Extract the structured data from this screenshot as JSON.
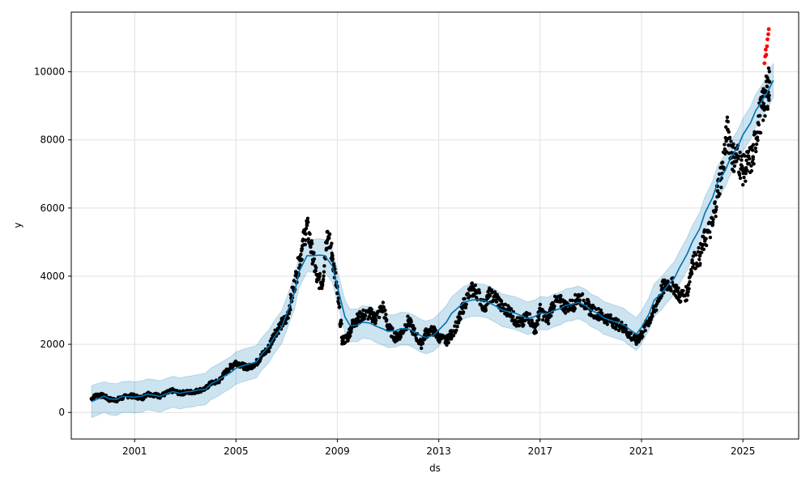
{
  "chart_data": {
    "type": "scatter",
    "title": "",
    "xlabel": "ds",
    "ylabel": "y",
    "xlim": [
      1998.5,
      2027.2
    ],
    "ylim": [
      -780,
      11750
    ],
    "x_ticks": [
      {
        "value": 2001.0,
        "label": "2001"
      },
      {
        "value": 2005.0,
        "label": "2005"
      },
      {
        "value": 2009.0,
        "label": "2009"
      },
      {
        "value": 2013.0,
        "label": "2013"
      },
      {
        "value": 2017.0,
        "label": "2017"
      },
      {
        "value": 2021.0,
        "label": "2021"
      },
      {
        "value": 2025.0,
        "label": "2025"
      }
    ],
    "y_ticks": [
      {
        "value": 0,
        "label": "0"
      },
      {
        "value": 2000,
        "label": "2000"
      },
      {
        "value": 4000,
        "label": "4000"
      },
      {
        "value": 6000,
        "label": "6000"
      },
      {
        "value": 8000,
        "label": "8000"
      },
      {
        "value": 10000,
        "label": "10000"
      }
    ],
    "grid": true,
    "legend": "none",
    "colors": {
      "observed": "#000000",
      "forecast_line": "#0072B2",
      "uncertainty_band": "#0072B2",
      "highlight_points": "#ff0000",
      "grid": "#e0e0e0"
    },
    "series": [
      {
        "role": "forecast",
        "x": [
          1999.3,
          1999.5,
          1999.8,
          2000.0,
          2000.3,
          2000.5,
          2000.8,
          2001.0,
          2001.3,
          2001.5,
          2001.8,
          2002.0,
          2002.3,
          2002.5,
          2002.8,
          2003.0,
          2003.3,
          2003.5,
          2003.8,
          2004.0,
          2004.3,
          2004.5,
          2004.8,
          2005.0,
          2005.3,
          2005.5,
          2005.8,
          2006.0,
          2006.3,
          2006.5,
          2006.8,
          2007.0,
          2007.3,
          2007.5,
          2007.8,
          2008.0,
          2008.3,
          2008.5,
          2008.8,
          2009.0,
          2009.3,
          2009.5,
          2009.8,
          2010.0,
          2010.3,
          2010.5,
          2010.8,
          2011.0,
          2011.3,
          2011.5,
          2011.8,
          2012.0,
          2012.3,
          2012.5,
          2012.8,
          2013.0,
          2013.3,
          2013.5,
          2013.8,
          2014.0,
          2014.3,
          2014.5,
          2014.8,
          2015.0,
          2015.3,
          2015.5,
          2015.8,
          2016.0,
          2016.3,
          2016.5,
          2016.8,
          2017.0,
          2017.3,
          2017.5,
          2017.8,
          2018.0,
          2018.3,
          2018.5,
          2018.8,
          2019.0,
          2019.3,
          2019.5,
          2019.8,
          2020.0,
          2020.3,
          2020.5,
          2020.8,
          2021.0,
          2021.3,
          2021.5,
          2021.8,
          2022.0,
          2022.3,
          2022.5,
          2022.8,
          2023.0,
          2023.3,
          2023.5,
          2023.8,
          2024.0,
          2024.3,
          2024.5,
          2024.8,
          2025.0,
          2025.3,
          2025.5,
          2025.8,
          2026.0,
          2026.2
        ],
        "yhat": [
          320,
          380,
          480,
          400,
          380,
          470,
          460,
          450,
          480,
          540,
          500,
          470,
          560,
          610,
          560,
          600,
          620,
          660,
          680,
          830,
          950,
          1050,
          1180,
          1300,
          1380,
          1420,
          1480,
          1700,
          1950,
          2200,
          2500,
          2900,
          3500,
          4150,
          4600,
          4600,
          4620,
          4600,
          4300,
          3700,
          2800,
          2550,
          2560,
          2650,
          2620,
          2540,
          2450,
          2380,
          2400,
          2460,
          2450,
          2380,
          2250,
          2200,
          2270,
          2420,
          2650,
          2900,
          3100,
          3230,
          3300,
          3310,
          3280,
          3220,
          3100,
          3000,
          2950,
          2920,
          2830,
          2760,
          2820,
          2920,
          2900,
          2980,
          3050,
          3140,
          3180,
          3230,
          3130,
          3000,
          2900,
          2780,
          2700,
          2650,
          2580,
          2450,
          2300,
          2500,
          2900,
          3300,
          3500,
          3700,
          3950,
          4250,
          4650,
          5000,
          5400,
          5850,
          6300,
          6750,
          7100,
          7450,
          7800,
          8150,
          8500,
          8850,
          9200,
          9450,
          9750
        ],
        "upper": [
          780,
          840,
          900,
          860,
          840,
          900,
          920,
          900,
          930,
          990,
          960,
          930,
          1010,
          1060,
          1010,
          1050,
          1080,
          1110,
          1150,
          1300,
          1420,
          1510,
          1640,
          1780,
          1860,
          1900,
          1960,
          2180,
          2430,
          2680,
          2980,
          3380,
          3980,
          4630,
          5080,
          5080,
          5100,
          5080,
          4780,
          4180,
          3300,
          3030,
          3040,
          3130,
          3100,
          3020,
          2930,
          2860,
          2880,
          2940,
          2930,
          2860,
          2730,
          2680,
          2750,
          2900,
          3130,
          3380,
          3580,
          3710,
          3780,
          3790,
          3760,
          3700,
          3580,
          3480,
          3430,
          3400,
          3310,
          3240,
          3300,
          3400,
          3380,
          3460,
          3530,
          3620,
          3660,
          3710,
          3610,
          3480,
          3380,
          3260,
          3180,
          3130,
          3060,
          2930,
          2780,
          2980,
          3380,
          3780,
          3980,
          4180,
          4430,
          4730,
          5130,
          5480,
          5880,
          6330,
          6780,
          7230,
          7580,
          7930,
          8280,
          8630,
          8980,
          9330,
          9680,
          9950,
          10250
        ],
        "lower": [
          -150,
          -100,
          10,
          -70,
          -90,
          0,
          0,
          -20,
          10,
          80,
          40,
          10,
          100,
          150,
          100,
          140,
          160,
          200,
          220,
          370,
          480,
          580,
          710,
          830,
          910,
          950,
          1010,
          1230,
          1470,
          1720,
          2020,
          2420,
          3020,
          3680,
          4120,
          4120,
          4140,
          4120,
          3820,
          3230,
          2330,
          2070,
          2080,
          2180,
          2150,
          2060,
          1970,
          1900,
          1920,
          1980,
          1970,
          1900,
          1770,
          1720,
          1800,
          1940,
          2170,
          2420,
          2620,
          2750,
          2820,
          2830,
          2800,
          2740,
          2620,
          2520,
          2470,
          2440,
          2350,
          2290,
          2350,
          2440,
          2420,
          2500,
          2570,
          2660,
          2700,
          2750,
          2650,
          2520,
          2420,
          2300,
          2220,
          2170,
          2100,
          1970,
          1820,
          2020,
          2420,
          2820,
          3020,
          3220,
          3470,
          3770,
          4170,
          4520,
          4920,
          5370,
          5820,
          6270,
          6620,
          6970,
          7320,
          7670,
          8020,
          8370,
          8720,
          8950,
          9250
        ]
      },
      {
        "role": "observed",
        "x": [
          1999.3,
          1999.5,
          1999.8,
          2000.0,
          2000.3,
          2000.5,
          2000.8,
          2001.0,
          2001.3,
          2001.5,
          2001.8,
          2002.0,
          2002.3,
          2002.5,
          2002.8,
          2003.0,
          2003.3,
          2003.5,
          2003.8,
          2004.0,
          2004.3,
          2004.5,
          2004.8,
          2005.0,
          2005.3,
          2005.5,
          2005.8,
          2006.0,
          2006.3,
          2006.5,
          2006.8,
          2007.0,
          2007.2,
          2007.4,
          2007.6,
          2007.8,
          2008.0,
          2008.2,
          2008.4,
          2008.6,
          2008.8,
          2009.0,
          2009.2,
          2009.4,
          2009.6,
          2009.8,
          2010.0,
          2010.3,
          2010.5,
          2010.8,
          2011.0,
          2011.3,
          2011.5,
          2011.8,
          2012.0,
          2012.3,
          2012.5,
          2012.8,
          2013.0,
          2013.3,
          2013.5,
          2013.8,
          2014.0,
          2014.3,
          2014.5,
          2014.8,
          2015.0,
          2015.3,
          2015.5,
          2015.8,
          2016.0,
          2016.3,
          2016.5,
          2016.8,
          2017.0,
          2017.3,
          2017.5,
          2017.8,
          2018.0,
          2018.3,
          2018.5,
          2018.8,
          2019.0,
          2019.3,
          2019.5,
          2019.8,
          2020.0,
          2020.3,
          2020.5,
          2020.8,
          2021.0,
          2021.3,
          2021.5,
          2021.8,
          2022.0,
          2022.3,
          2022.5,
          2022.8,
          2023.0,
          2023.3,
          2023.5,
          2023.8,
          2024.0,
          2024.2,
          2024.4,
          2024.6,
          2024.8,
          2025.0,
          2025.2,
          2025.4,
          2025.6,
          2025.8,
          2025.95,
          2026.05
        ],
        "y": [
          400,
          520,
          480,
          380,
          370,
          430,
          500,
          470,
          420,
          560,
          510,
          480,
          580,
          640,
          560,
          590,
          600,
          640,
          700,
          860,
          900,
          1100,
          1350,
          1480,
          1350,
          1320,
          1450,
          1650,
          1900,
          2300,
          2600,
          2750,
          3400,
          4100,
          4800,
          5500,
          4700,
          3900,
          3800,
          5300,
          4600,
          3500,
          2100,
          2200,
          2600,
          2750,
          2850,
          2900,
          2750,
          3100,
          2500,
          2200,
          2300,
          2700,
          2400,
          2000,
          2350,
          2400,
          2200,
          2100,
          2300,
          2700,
          3200,
          3600,
          3550,
          3100,
          3450,
          3350,
          3050,
          3000,
          2700,
          2600,
          2900,
          2400,
          3000,
          2700,
          3200,
          3250,
          3100,
          3150,
          3400,
          3200,
          3000,
          2900,
          2800,
          2700,
          2600,
          2500,
          2300,
          2100,
          2300,
          2700,
          3000,
          3600,
          3800,
          3700,
          3400,
          3500,
          4400,
          4600,
          5100,
          5500,
          6500,
          7200,
          8300,
          7500,
          7500,
          7100,
          7300,
          7500,
          8500,
          9000,
          9400,
          9700
        ]
      },
      {
        "role": "highlighted",
        "x": [
          2025.85,
          2025.88,
          2025.9,
          2025.92,
          2025.95,
          2025.97,
          2026.0,
          2026.02
        ],
        "y": [
          10250,
          10450,
          10650,
          10500,
          10750,
          10950,
          11100,
          11250
        ]
      }
    ]
  }
}
